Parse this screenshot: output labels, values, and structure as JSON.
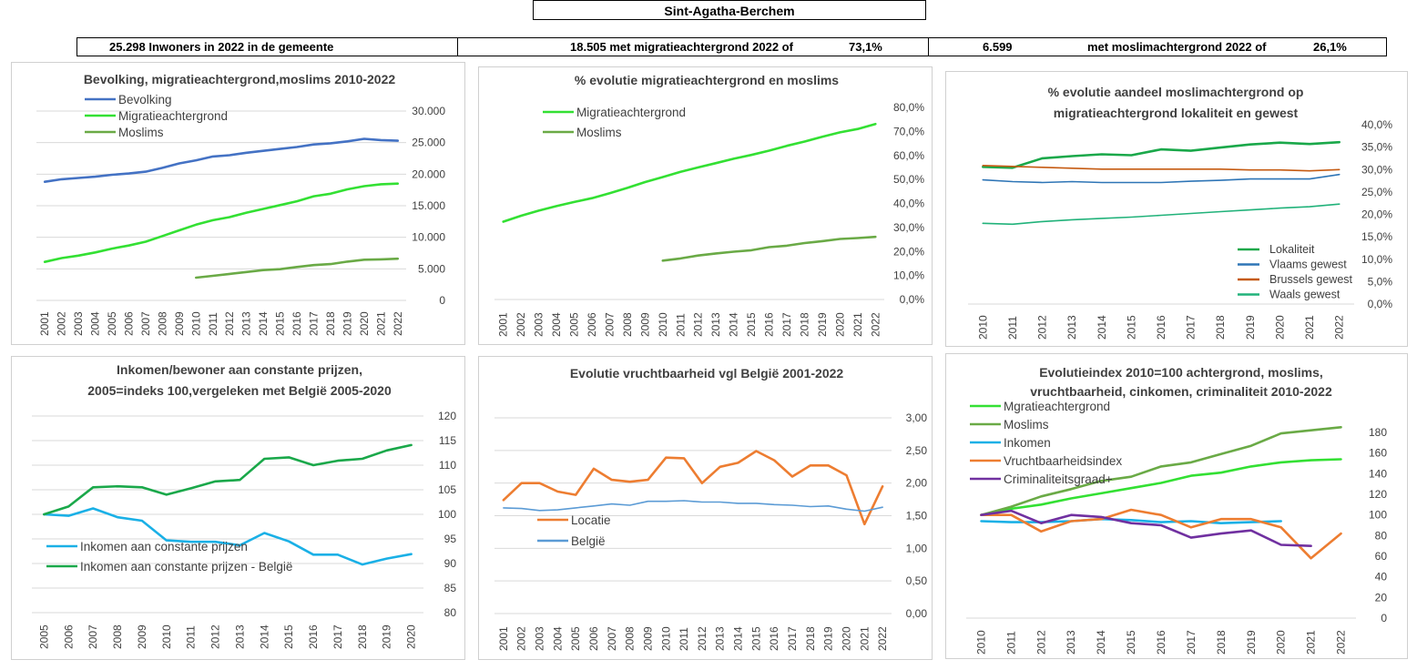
{
  "header": {
    "title": "Sint-Agatha-Berchem",
    "stat1": "25.298 Inwoners in 2022 in de gemeente",
    "stat2": "18.505 met migratieachtergrond 2022 of",
    "stat2_pct": "73,1%",
    "stat3_num": "6.599",
    "stat3_text": "met moslimachtergrond 2022 of",
    "stat3_pct": "26,1%"
  },
  "chart_data": [
    {
      "id": "c1",
      "type": "line",
      "title": [
        "Bevolking, migratieachtergrond,moslims 2010-2022"
      ],
      "categories": [
        "2001",
        "2002",
        "2003",
        "2004",
        "2005",
        "2006",
        "2007",
        "2008",
        "2009",
        "2010",
        "2011",
        "2012",
        "2013",
        "2014",
        "2015",
        "2016",
        "2017",
        "2018",
        "2019",
        "2020",
        "2021",
        "2022"
      ],
      "ylim": [
        0,
        30000
      ],
      "yticks": [
        0,
        5000,
        10000,
        15000,
        20000,
        25000,
        30000
      ],
      "ytick_labels": [
        "0",
        "5.000",
        "10.000",
        "15.000",
        "20.000",
        "25.000",
        "30.000"
      ],
      "legend_position": "top-left",
      "series": [
        {
          "name": "Bevolking",
          "color": "#4472c4",
          "values": [
            18800,
            19200,
            19400,
            19600,
            19900,
            20100,
            20400,
            21000,
            21700,
            22200,
            22800,
            23000,
            23400,
            23700,
            24000,
            24300,
            24700,
            24900,
            25200,
            25600,
            25400,
            25298
          ]
        },
        {
          "name": "Migratieachtergrond",
          "color": "#33e033",
          "values": [
            6100,
            6700,
            7100,
            7600,
            8200,
            8700,
            9300,
            10200,
            11100,
            12000,
            12700,
            13200,
            13900,
            14500,
            15100,
            15700,
            16500,
            16900,
            17600,
            18100,
            18400,
            18505
          ]
        },
        {
          "name": "Moslims",
          "color": "#6aaa46",
          "values": [
            null,
            null,
            null,
            null,
            null,
            null,
            null,
            null,
            null,
            3600,
            3900,
            4200,
            4500,
            4800,
            4950,
            5300,
            5600,
            5750,
            6150,
            6450,
            6500,
            6599
          ]
        }
      ]
    },
    {
      "id": "c2",
      "type": "line",
      "title": [
        "% evolutie migratieachtergrond  en moslims"
      ],
      "categories": [
        "2001",
        "2002",
        "2003",
        "2004",
        "2005",
        "2006",
        "2007",
        "2008",
        "2009",
        "2010",
        "2011",
        "2012",
        "2013",
        "2014",
        "2015",
        "2016",
        "2017",
        "2018",
        "2019",
        "2020",
        "2021",
        "2022"
      ],
      "ylim": [
        0,
        80
      ],
      "yticks": [
        0,
        10,
        20,
        30,
        40,
        50,
        60,
        70,
        80
      ],
      "ytick_labels": [
        "0,0%",
        "10,0%",
        "20,0%",
        "30,0%",
        "40,0%",
        "50,0%",
        "60,0%",
        "70,0%",
        "80,0%"
      ],
      "legend_position": "top-left",
      "series": [
        {
          "name": "Migratieachtergrond",
          "color": "#33e033",
          "values": [
            32.4,
            34.9,
            37.0,
            38.9,
            40.6,
            42.2,
            44.3,
            46.5,
            48.9,
            51.0,
            53.2,
            55.0,
            56.8,
            58.6,
            60.2,
            62.0,
            64.0,
            65.8,
            67.8,
            69.6,
            71.0,
            73.1
          ]
        },
        {
          "name": "Moslims",
          "color": "#6aaa46",
          "values": [
            null,
            null,
            null,
            null,
            null,
            null,
            null,
            null,
            null,
            16.2,
            17.1,
            18.3,
            19.2,
            19.9,
            20.5,
            21.8,
            22.4,
            23.5,
            24.3,
            25.2,
            25.6,
            26.1
          ]
        }
      ]
    },
    {
      "id": "c3",
      "type": "line",
      "title": [
        "% evolutie aandeel moslimachtergrond op",
        "migratieachtergrond lokaliteit en gewest"
      ],
      "categories": [
        "2010",
        "2011",
        "2012",
        "2013",
        "2014",
        "2015",
        "2016",
        "2017",
        "2018",
        "2019",
        "2020",
        "2021",
        "2022"
      ],
      "ylim": [
        0,
        40
      ],
      "yticks": [
        0,
        5,
        10,
        15,
        20,
        25,
        30,
        35,
        40
      ],
      "ytick_labels": [
        "0,0%",
        "5,0%",
        "10,0%",
        "15,0%",
        "20,0%",
        "25,0%",
        "30,0%",
        "35,0%",
        "40,0%"
      ],
      "legend_position": "bottom-right",
      "series": [
        {
          "name": "Lokaliteit",
          "color": "#1aa84a",
          "values": [
            30.6,
            30.4,
            32.5,
            33.0,
            33.4,
            33.2,
            34.5,
            34.2,
            34.9,
            35.6,
            36.0,
            35.7,
            36.1
          ]
        },
        {
          "name": "Vlaams gewest",
          "color": "#2e75b6",
          "values": [
            27.7,
            27.3,
            27.1,
            27.3,
            27.1,
            27.1,
            27.1,
            27.4,
            27.6,
            27.9,
            27.9,
            27.9,
            28.9
          ]
        },
        {
          "name": "Brussels gewest",
          "color": "#c55a11",
          "values": [
            30.9,
            30.7,
            30.5,
            30.3,
            30.1,
            30.1,
            30.1,
            30.1,
            30.1,
            29.9,
            29.9,
            29.7,
            30.0
          ]
        },
        {
          "name": "Waals gewest",
          "color": "#21b27a",
          "values": [
            18.0,
            17.8,
            18.4,
            18.8,
            19.1,
            19.4,
            19.8,
            20.2,
            20.6,
            21.0,
            21.4,
            21.7,
            22.3
          ]
        }
      ]
    },
    {
      "id": "c4",
      "type": "line",
      "title": [
        "Inkomen/bewoner aan constante prijzen,",
        "2005=indeks 100,vergeleken met België 2005-2020"
      ],
      "categories": [
        "2005",
        "2006",
        "2007",
        "2008",
        "2009",
        "2010",
        "2011",
        "2012",
        "2013",
        "2014",
        "2015",
        "2016",
        "2017",
        "2018",
        "2019",
        "2020"
      ],
      "ylim": [
        80,
        120
      ],
      "yticks": [
        80,
        85,
        90,
        95,
        100,
        105,
        110,
        115,
        120
      ],
      "ytick_labels": [
        "80",
        "85",
        "90",
        "95",
        "100",
        "105",
        "110",
        "115",
        "120"
      ],
      "legend_position": "bottom-left",
      "series": [
        {
          "name": "Inkomen aan constante prijzen",
          "color": "#1ab0e6",
          "values": [
            100,
            99.7,
            101.2,
            99.4,
            98.7,
            94.7,
            94.4,
            94.4,
            93.7,
            96.2,
            94.5,
            91.8,
            91.8,
            89.8,
            91.0,
            91.9
          ]
        },
        {
          "name": "Inkomen aan constante prijzen - België",
          "color": "#1aa84a",
          "values": [
            100,
            101.6,
            105.5,
            105.7,
            105.5,
            104.0,
            105.3,
            106.7,
            107.0,
            111.3,
            111.6,
            110.0,
            110.9,
            111.3,
            113.0,
            114.1
          ]
        }
      ]
    },
    {
      "id": "c5",
      "type": "line",
      "title": [
        "Evolutie vruchtbaarheid vgl België 2001-2022"
      ],
      "categories": [
        "2001",
        "2002",
        "2003",
        "2004",
        "2005",
        "2006",
        "2007",
        "2008",
        "2009",
        "2010",
        "2011",
        "2012",
        "2013",
        "2014",
        "2015",
        "2016",
        "2017",
        "2018",
        "2019",
        "2020",
        "2021",
        "2022"
      ],
      "ylim": [
        0,
        3
      ],
      "yticks": [
        0,
        0.5,
        1,
        1.5,
        2,
        2.5,
        3
      ],
      "ytick_labels": [
        "0,00",
        "0,50",
        "1,00",
        "1,50",
        "2,00",
        "2,50",
        "3,00"
      ],
      "legend_position": "bottom-left",
      "series": [
        {
          "name": "Locatie",
          "color": "#ed7d31",
          "values": [
            1.74,
            2.0,
            2.0,
            1.87,
            1.82,
            2.22,
            2.05,
            2.02,
            2.05,
            2.39,
            2.38,
            2.0,
            2.25,
            2.31,
            2.49,
            2.35,
            2.1,
            2.27,
            2.27,
            2.12,
            1.37,
            1.95
          ]
        },
        {
          "name": "België",
          "color": "#5b9bd5",
          "values": [
            1.62,
            1.61,
            1.58,
            1.59,
            1.62,
            1.65,
            1.68,
            1.66,
            1.72,
            1.72,
            1.73,
            1.71,
            1.71,
            1.69,
            1.69,
            1.67,
            1.66,
            1.64,
            1.65,
            1.6,
            1.57,
            1.63
          ]
        }
      ]
    },
    {
      "id": "c6",
      "type": "line",
      "title": [
        "Evolutieindex 2010=100 achtergrond, moslims,",
        "vruchtbaarheid, cinkomen, criminaliteit  2010-2022"
      ],
      "categories": [
        "2010",
        "2011",
        "2012",
        "2013",
        "2014",
        "2015",
        "2016",
        "2017",
        "2018",
        "2019",
        "2020",
        "2021",
        "2022"
      ],
      "ylim": [
        0,
        180
      ],
      "yticks": [
        0,
        20,
        40,
        60,
        80,
        100,
        120,
        140,
        160,
        180
      ],
      "ytick_labels": [
        "0",
        "20",
        "40",
        "60",
        "80",
        "100",
        "120",
        "140",
        "160",
        "180"
      ],
      "legend_position": "top-left",
      "series": [
        {
          "name": "Mgratieachtergrond",
          "color": "#33e033",
          "values": [
            100,
            106,
            110,
            116,
            121,
            126,
            131,
            138,
            141,
            147,
            151,
            153,
            154
          ]
        },
        {
          "name": "Moslims",
          "color": "#6aaa46",
          "values": [
            100,
            108,
            118,
            125,
            133,
            137,
            147,
            151,
            159,
            167,
            179,
            182,
            185
          ]
        },
        {
          "name": "Inkomen",
          "color": "#1ab0e6",
          "values": [
            94,
            93,
            93,
            94,
            96,
            95,
            93,
            94,
            92,
            93,
            94,
            null,
            null
          ]
        },
        {
          "name": "Vruchtbaarheidsindex",
          "color": "#ed7d31",
          "values": [
            100,
            100,
            84,
            94,
            96,
            105,
            100,
            88,
            96,
            96,
            88,
            58,
            82
          ]
        },
        {
          "name": "Criminaliteitsgraad+",
          "color": "#7030a0",
          "values": [
            100,
            104,
            92,
            100,
            98,
            92,
            90,
            78,
            82,
            85,
            71,
            70,
            null
          ]
        }
      ]
    }
  ]
}
